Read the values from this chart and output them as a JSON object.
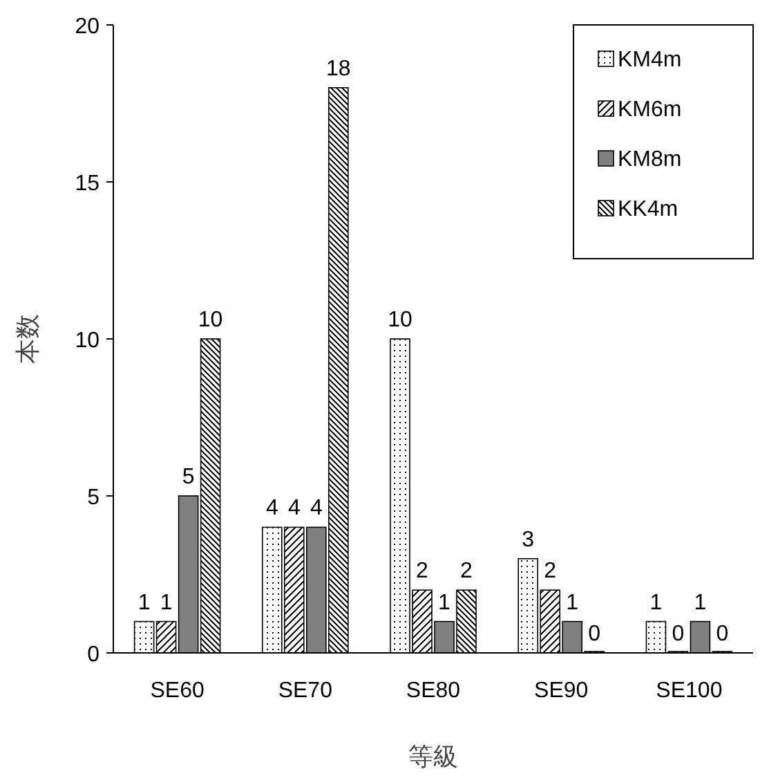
{
  "chart_data": {
    "type": "bar",
    "xlabel": "等級",
    "ylabel": "本数",
    "categories": [
      "SE60",
      "SE70",
      "SE80",
      "SE90",
      "SE100"
    ],
    "series": [
      {
        "name": "KM4m",
        "color": "#000000",
        "values": [
          1,
          4,
          10,
          3,
          1
        ]
      },
      {
        "name": "KM6m",
        "color": "#000000",
        "values": [
          1,
          4,
          2,
          2,
          0
        ]
      },
      {
        "name": "KM8m",
        "color": "#808080",
        "values": [
          5,
          4,
          1,
          1,
          1
        ]
      },
      {
        "name": "KK4m",
        "color": "#000000",
        "values": [
          10,
          18,
          2,
          0,
          0
        ]
      }
    ],
    "ylim": [
      0,
      20
    ],
    "yticks": [
      0,
      5,
      10,
      15,
      20
    ],
    "grid": false,
    "legend": "top right",
    "data_labels": true
  }
}
